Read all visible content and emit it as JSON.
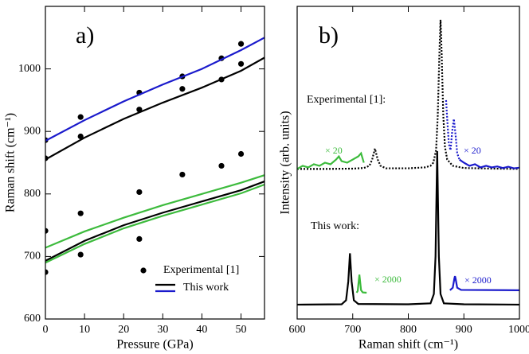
{
  "chart_data": [
    {
      "type": "line",
      "xlabel": "Pressure (GPa)",
      "ylabel": "Raman shift (cm⁻¹)",
      "xlim": [
        0,
        56
      ],
      "ylim": [
        600,
        1100
      ],
      "xticks": [
        0,
        10,
        20,
        30,
        40,
        50
      ],
      "yticks": [
        600,
        700,
        800,
        900,
        1000
      ],
      "annotations": [
        {
          "text": "a)"
        }
      ],
      "series": [
        {
          "name": "Experimental [1]",
          "kind": "scatter",
          "color": "#000000",
          "x": [
            0,
            0,
            0,
            0,
            9,
            9,
            9,
            9,
            24,
            24,
            24,
            24,
            35,
            35,
            35,
            45,
            45,
            45,
            50,
            50,
            50
          ],
          "values": [
            675,
            741,
            857,
            886,
            923,
            892,
            769,
            703,
            962,
            935,
            803,
            728,
            988,
            968,
            831,
            1017,
            983,
            845,
            1040,
            1008,
            864
          ]
        },
        {
          "name": "This work",
          "kind": "line",
          "color": "#000000",
          "x": [
            0,
            10,
            20,
            30,
            40,
            50,
            56
          ],
          "values": [
            855,
            890,
            920,
            946,
            970,
            997,
            1018
          ]
        },
        {
          "kind": "line",
          "color": "#1a1acc",
          "x": [
            0,
            10,
            20,
            30,
            40,
            50,
            56
          ],
          "values": [
            885,
            918,
            948,
            975,
            1000,
            1030,
            1050
          ]
        },
        {
          "kind": "line",
          "color": "#000000",
          "x": [
            0,
            10,
            20,
            30,
            40,
            50,
            56
          ],
          "values": [
            693,
            725,
            750,
            770,
            788,
            806,
            820
          ]
        },
        {
          "kind": "line",
          "color": "#3dbb3d",
          "x": [
            0,
            10,
            20,
            30,
            40,
            50,
            56
          ],
          "values": [
            714,
            740,
            762,
            782,
            800,
            818,
            830
          ]
        },
        {
          "kind": "line",
          "color": "#3dbb3d",
          "x": [
            0,
            10,
            20,
            30,
            40,
            50,
            56
          ],
          "values": [
            690,
            720,
            745,
            765,
            783,
            801,
            815
          ]
        }
      ]
    },
    {
      "type": "line",
      "xlabel": "Raman shift (cm⁻¹)",
      "ylabel": "Intensity (arb. units)",
      "xlim": [
        600,
        1000
      ],
      "ylim": [
        0,
        1
      ],
      "xticks": [
        600,
        700,
        800,
        900,
        1000
      ],
      "annotations": [
        {
          "text": "b)"
        },
        {
          "text": "Experimental [1]:"
        },
        {
          "text": "This work:"
        },
        {
          "text": "× 20",
          "color": "#3dbb3d"
        },
        {
          "text": "× 20",
          "color": "#1a1acc"
        },
        {
          "text": "× 2000",
          "color": "#3dbb3d"
        },
        {
          "text": "× 2000",
          "color": "#1a1acc"
        }
      ],
      "series": [
        {
          "kind": "line",
          "dash": true,
          "color": "#000000",
          "x": [
            600,
            650,
            700,
            720,
            730,
            735,
            740,
            745,
            750,
            760,
            800,
            830,
            840,
            845,
            850,
            853,
            856,
            858,
            860,
            863,
            866,
            870,
            880,
            900,
            950,
            1000
          ],
          "values": [
            0.48,
            0.48,
            0.481,
            0.483,
            0.49,
            0.51,
            0.545,
            0.51,
            0.49,
            0.482,
            0.482,
            0.485,
            0.49,
            0.5,
            0.54,
            0.65,
            0.85,
            0.957,
            0.85,
            0.65,
            0.55,
            0.51,
            0.49,
            0.483,
            0.481,
            0.48
          ]
        },
        {
          "kind": "line",
          "color": "#000000",
          "x": [
            600,
            680,
            688,
            692,
            695,
            698,
            702,
            710,
            800,
            840,
            846,
            849,
            852,
            855,
            858,
            864,
            900,
            1000
          ],
          "values": [
            0.046,
            0.047,
            0.06,
            0.12,
            0.21,
            0.12,
            0.06,
            0.048,
            0.047,
            0.05,
            0.08,
            0.2,
            0.537,
            0.2,
            0.08,
            0.05,
            0.047,
            0.046
          ]
        },
        {
          "kind": "line",
          "color": "#3dbb3d",
          "x": [
            707,
            709,
            711,
            712,
            713,
            715,
            718,
            725
          ],
          "values": [
            0.084,
            0.09,
            0.125,
            0.142,
            0.125,
            0.092,
            0.085,
            0.084
          ]
        },
        {
          "kind": "line",
          "color": "#1a1acc",
          "x": [
            875,
            880,
            883,
            884,
            885,
            888,
            895,
            1000
          ],
          "values": [
            0.092,
            0.1,
            0.13,
            0.137,
            0.13,
            0.1,
            0.093,
            0.092
          ]
        },
        {
          "kind": "line",
          "color": "#3dbb3d",
          "x": [
            600,
            610,
            620,
            630,
            640,
            650,
            660,
            670,
            675,
            680,
            690,
            700,
            710,
            715,
            720
          ],
          "values": [
            0.48,
            0.49,
            0.485,
            0.495,
            0.49,
            0.5,
            0.495,
            0.51,
            0.52,
            0.505,
            0.5,
            0.51,
            0.52,
            0.53,
            0.5
          ]
        },
        {
          "kind": "line",
          "dash": true,
          "color": "#1a1acc",
          "x": [
            868,
            870,
            873,
            876,
            879,
            882,
            885,
            888,
            892
          ],
          "values": [
            0.7,
            0.64,
            0.56,
            0.54,
            0.6,
            0.64,
            0.59,
            0.53,
            0.51
          ]
        },
        {
          "kind": "line",
          "color": "#1a1acc",
          "x": [
            892,
            900,
            910,
            920,
            930,
            940,
            950,
            960,
            970,
            980,
            990,
            1000
          ],
          "values": [
            0.51,
            0.5,
            0.49,
            0.495,
            0.485,
            0.49,
            0.485,
            0.488,
            0.483,
            0.487,
            0.482,
            0.484
          ]
        }
      ]
    }
  ]
}
